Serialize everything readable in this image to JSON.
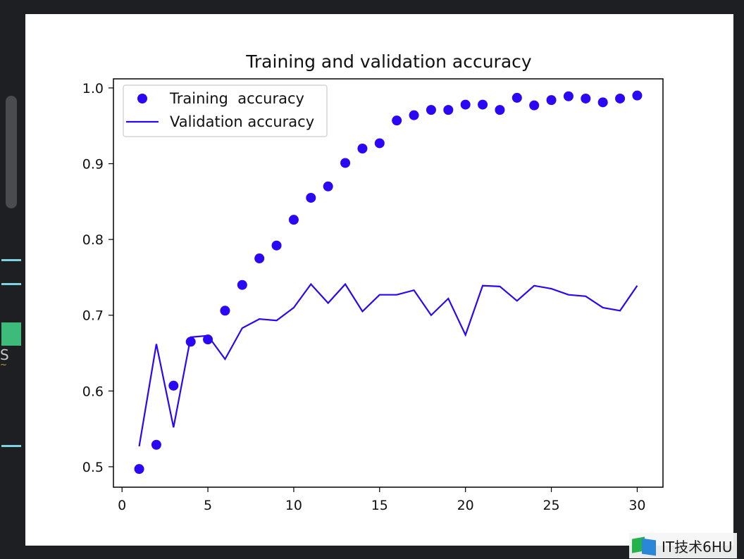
{
  "chart_data": {
    "type": "line",
    "title": "Training and validation accuracy",
    "xlabel": "",
    "ylabel": "",
    "xlim": [
      -0.5,
      31.5
    ],
    "ylim": [
      0.473,
      1.012
    ],
    "xticks": [
      0,
      5,
      10,
      15,
      20,
      25,
      30
    ],
    "yticks": [
      0.5,
      0.6,
      0.7,
      0.8,
      0.9,
      1.0
    ],
    "xtick_labels": [
      "0",
      "5",
      "10",
      "15",
      "20",
      "25",
      "30"
    ],
    "ytick_labels": [
      "0.5",
      "0.6",
      "0.7",
      "0.8",
      "0.9",
      "1.0"
    ],
    "grid": false,
    "legend_position": "top-left",
    "x": [
      1,
      2,
      3,
      4,
      5,
      6,
      7,
      8,
      9,
      10,
      11,
      12,
      13,
      14,
      15,
      16,
      17,
      18,
      19,
      20,
      21,
      22,
      23,
      24,
      25,
      26,
      27,
      28,
      29,
      30
    ],
    "series": [
      {
        "name": "Training  accuracy",
        "style": "markers",
        "color": "#2a07f5",
        "values": [
          0.497,
          0.529,
          0.607,
          0.665,
          0.668,
          0.706,
          0.74,
          0.775,
          0.792,
          0.826,
          0.855,
          0.87,
          0.901,
          0.92,
          0.927,
          0.957,
          0.964,
          0.971,
          0.971,
          0.978,
          0.978,
          0.971,
          0.987,
          0.977,
          0.984,
          0.989,
          0.986,
          0.981,
          0.986,
          0.99
        ]
      },
      {
        "name": "Validation accuracy",
        "style": "line",
        "color": "#2a07f5",
        "values": [
          0.527,
          0.662,
          0.552,
          0.671,
          0.673,
          0.642,
          0.683,
          0.695,
          0.693,
          0.71,
          0.741,
          0.716,
          0.741,
          0.705,
          0.727,
          0.727,
          0.733,
          0.7,
          0.722,
          0.674,
          0.739,
          0.738,
          0.719,
          0.739,
          0.735,
          0.727,
          0.725,
          0.71,
          0.706,
          0.739
        ]
      }
    ]
  },
  "watermark": {
    "text": "IT技术6HU"
  }
}
